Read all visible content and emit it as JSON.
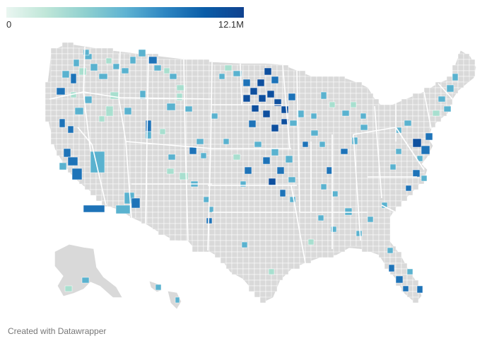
{
  "legend": {
    "min_label": "0",
    "max_label": "12.1M",
    "colors": [
      "#eaf6f1",
      "#bfe6d8",
      "#8fd0cf",
      "#5fb3d2",
      "#2e86c2",
      "#0a5da8",
      "#10428f"
    ]
  },
  "map": {
    "base_fill": "#d9d9d9",
    "border_color": "#ffffff",
    "low_color": "#a8dfcf",
    "mid_color": "#5ab2cf",
    "high_color": "#1e73b8",
    "top_color": "#0e4f9e"
  },
  "footer": {
    "text": "Created with Datawrapper"
  }
}
